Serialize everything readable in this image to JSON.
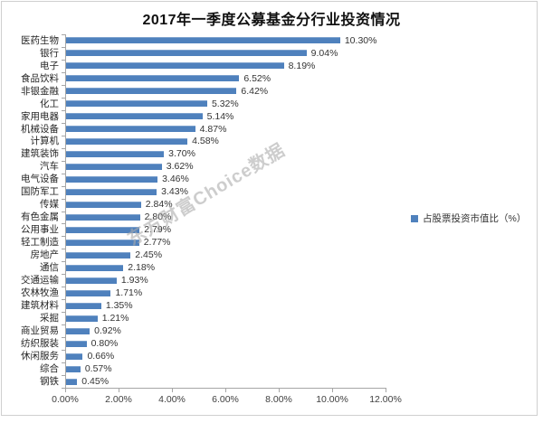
{
  "title": "2017年一季度公募基金分行业投资情况",
  "watermark": "东方财富Choice数据",
  "legend": {
    "label": "占股票投资市值比（%）",
    "marker_color": "#4f81bd"
  },
  "colors": {
    "bar": "#4f81bd",
    "axis": "#a6a6a6",
    "text": "#333333",
    "frame_border": "#cfcfcf",
    "watermark": "#acacac"
  },
  "chart_data": {
    "type": "bar",
    "orientation": "horizontal",
    "title": "2017年一季度公募基金分行业投资情况",
    "categories": [
      "医药生物",
      "银行",
      "电子",
      "食品饮料",
      "非银金融",
      "化工",
      "家用电器",
      "机械设备",
      "计算机",
      "建筑装饰",
      "汽车",
      "电气设备",
      "国防军工",
      "传媒",
      "有色金属",
      "公用事业",
      "轻工制造",
      "房地产",
      "通信",
      "交通运输",
      "农林牧渔",
      "建筑材料",
      "采掘",
      "商业贸易",
      "纺织服装",
      "休闲服务",
      "综合",
      "钢铁"
    ],
    "values": [
      10.3,
      9.04,
      8.19,
      6.52,
      6.42,
      5.32,
      5.14,
      4.87,
      4.58,
      3.7,
      3.62,
      3.46,
      3.43,
      2.84,
      2.8,
      2.79,
      2.77,
      2.45,
      2.18,
      1.93,
      1.71,
      1.35,
      1.21,
      0.92,
      0.8,
      0.66,
      0.57,
      0.45
    ],
    "value_labels": [
      "10.30%",
      "9.04%",
      "8.19%",
      "6.52%",
      "6.42%",
      "5.32%",
      "5.14%",
      "4.87%",
      "4.58%",
      "3.70%",
      "3.62%",
      "3.46%",
      "3.43%",
      "2.84%",
      "2.80%",
      "2.79%",
      "2.77%",
      "2.45%",
      "2.18%",
      "1.93%",
      "1.71%",
      "1.35%",
      "1.21%",
      "0.92%",
      "0.80%",
      "0.66%",
      "0.57%",
      "0.45%"
    ],
    "xlabel": "",
    "ylabel": "",
    "xlim": [
      0,
      12
    ],
    "x_ticks": [
      "0.00%",
      "2.00%",
      "4.00%",
      "6.00%",
      "8.00%",
      "10.00%",
      "12.00%"
    ],
    "legend": [
      "占股票投资市值比（%）"
    ],
    "legend_position": "right",
    "grid": false,
    "bar_color": "#4f81bd"
  }
}
